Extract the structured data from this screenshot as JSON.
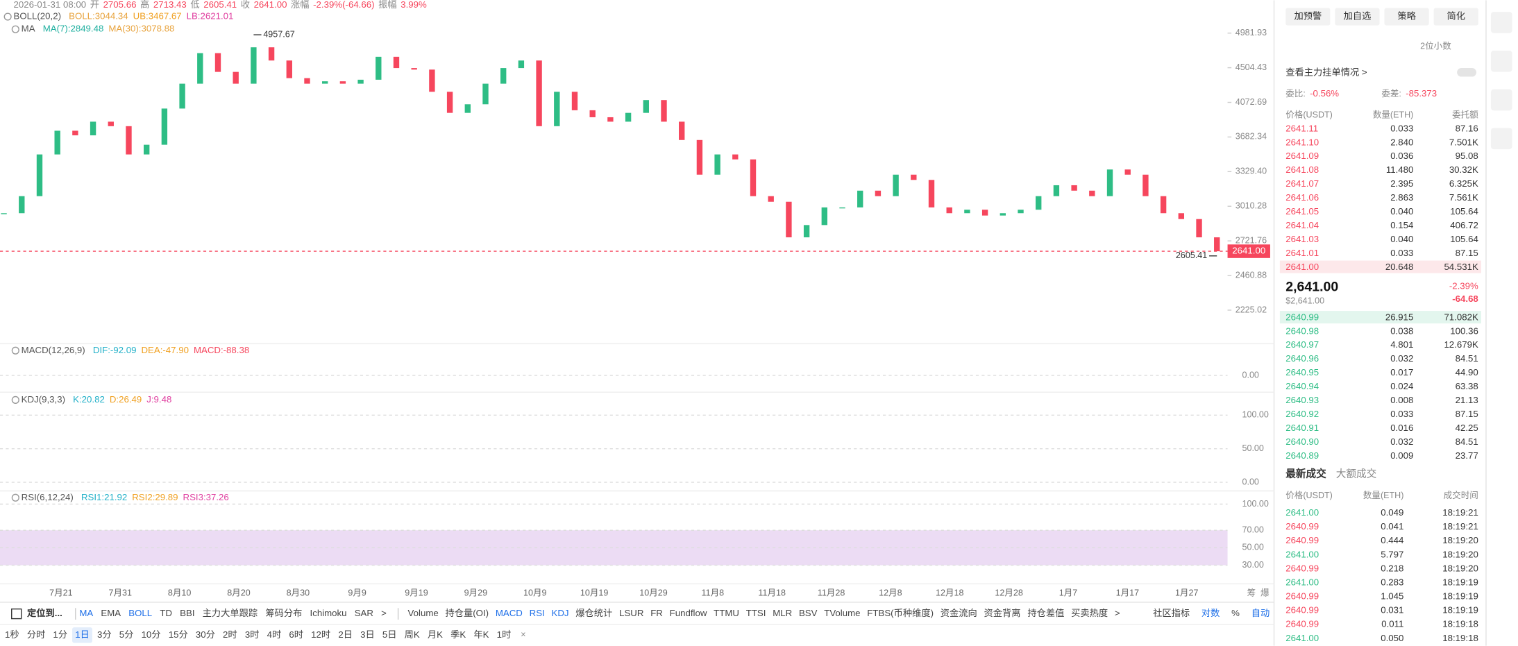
{
  "header": {
    "items": [
      {
        "text": "2026-01-31 08:00",
        "color": "#888888"
      },
      {
        "text": "开",
        "color": "#888888"
      },
      {
        "text": "2705.66",
        "color": "#f6465d"
      },
      {
        "text": "高",
        "color": "#888888"
      },
      {
        "text": "2713.43",
        "color": "#f6465d"
      },
      {
        "text": "低",
        "color": "#888888"
      },
      {
        "text": "2605.41",
        "color": "#f6465d"
      },
      {
        "text": "收",
        "color": "#888888"
      },
      {
        "text": "2641.00",
        "color": "#f6465d"
      },
      {
        "text": "涨幅",
        "color": "#888888"
      },
      {
        "text": "-2.39%(-64.66)",
        "color": "#f6465d"
      },
      {
        "text": "振幅",
        "color": "#888888"
      },
      {
        "text": "3.99%",
        "color": "#f6465d"
      }
    ]
  },
  "indicators": [
    {
      "name": "BOLL(20,2)",
      "values": [
        {
          "text": "BOLL:3044.34",
          "color": "#e8a33d"
        },
        {
          "text": "UB:3467.67",
          "color": "#f0a020"
        },
        {
          "text": "LB:2621.01",
          "color": "#e040a0"
        }
      ]
    },
    {
      "name": "MA",
      "values": [
        {
          "text": "MA(7):2849.48",
          "color": "#20b0a0"
        },
        {
          "text": "MA(30):3078.88",
          "color": "#e8a33d"
        }
      ]
    },
    {
      "name": "MACD(12,26,9)",
      "values": [
        {
          "text": "DIF:-92.09",
          "color": "#20b0c8"
        },
        {
          "text": "DEA:-47.90",
          "color": "#f0a020"
        },
        {
          "text": "MACD:-88.38",
          "color": "#f6465d"
        }
      ]
    },
    {
      "name": "KDJ(9,3,3)",
      "values": [
        {
          "text": "K:20.82",
          "color": "#20b0c8"
        },
        {
          "text": "D:26.49",
          "color": "#f0a020"
        },
        {
          "text": "J:9.48",
          "color": "#e040a0"
        }
      ]
    },
    {
      "name": "RSI(6,12,24)",
      "values": [
        {
          "text": "RSI1:21.92",
          "color": "#20b0c8"
        },
        {
          "text": "RSI2:29.89",
          "color": "#f0a020"
        },
        {
          "text": "RSI3:37.26",
          "color": "#e040a0"
        }
      ]
    }
  ],
  "price_chart": {
    "type": "candlestick",
    "log_scale": true,
    "grid": false,
    "ylim": [
      2046,
      5405
    ],
    "up_color": "#2ebd85",
    "down_color": "#f6465d",
    "yticks": [
      4981.93,
      4504.43,
      4072.69,
      3682.34,
      {
        "value": 3329.4,
        "label": "3329.40"
      },
      3010.28,
      2721.76,
      2460.88,
      2225.02
    ],
    "closes": [
      2950,
      3100,
      3500,
      3750,
      3700,
      3850,
      3800,
      3500,
      3600,
      4000,
      4300,
      4700,
      4450,
      4300,
      4780,
      4600,
      4370,
      4300,
      4330,
      4300,
      4350,
      4650,
      4500,
      4480,
      4200,
      3950,
      4050,
      4300,
      4500,
      4600,
      3800,
      4200,
      3980,
      3900,
      3850,
      3950,
      4100,
      3850,
      3650,
      3300,
      3500,
      3450,
      3100,
      3050,
      2750,
      2850,
      3000,
      3000,
      3150,
      3100,
      3300,
      3250,
      3000,
      2950,
      2980,
      2930,
      2950,
      2980,
      3100,
      3200,
      3150,
      3100,
      3350,
      3300,
      3100,
      2950,
      2900,
      2750,
      2641
    ],
    "high_label": 4957.67,
    "low_label": 2605.41,
    "last_price": {
      "value": 2641,
      "label": "2641.00"
    },
    "xticks": [
      "7月21",
      "7月31",
      "8月10",
      "8月20",
      "8月30",
      "9月9",
      "9月19",
      "9月29",
      "10月9",
      "10月19",
      "10月29",
      "11月8",
      "11月18",
      "11月28",
      "12月8",
      "12月18",
      "12月28",
      "1月7",
      "1月17",
      "1月27"
    ],
    "corner_labels": [
      "筹",
      "爆"
    ]
  },
  "sub_panels": [
    {
      "ylim": [
        -200,
        400
      ],
      "yticks": [
        {
          "value": 0,
          "label": "0.00"
        }
      ]
    },
    {
      "ylim": [
        -10,
        127
      ],
      "yticks": [
        {
          "value": 100,
          "label": "100.00"
        },
        {
          "value": 50,
          "label": "50.00"
        },
        {
          "value": 0,
          "label": "0.00"
        }
      ]
    },
    {
      "ylim": [
        12,
        114
      ],
      "yticks": [
        {
          "value": 100,
          "label": "100.00"
        },
        {
          "value": 70,
          "label": "70.00"
        },
        {
          "value": 50,
          "label": "50.00"
        },
        {
          "value": 30,
          "label": "30.00"
        }
      ]
    }
  ],
  "toolbar": {
    "locate": "定位到...",
    "active_color": "#1e6fe8",
    "main": [
      {
        "text": "MA",
        "active": true
      },
      {
        "text": "EMA"
      },
      {
        "text": "BOLL",
        "active": true
      },
      {
        "text": "TD"
      },
      {
        "text": "BBI"
      },
      {
        "text": "主力大单跟踪"
      },
      {
        "text": "筹码分布"
      },
      {
        "text": "Ichimoku"
      },
      {
        "text": "SAR"
      },
      {
        "text": ">"
      }
    ],
    "sub": [
      {
        "text": "Volume"
      },
      {
        "text": "持仓量(OI)"
      },
      {
        "text": "MACD",
        "active": true
      },
      {
        "text": "RSI",
        "active": true
      },
      {
        "text": "KDJ",
        "active": true
      },
      {
        "text": "爆仓统计"
      },
      {
        "text": "LSUR"
      },
      {
        "text": "FR"
      },
      {
        "text": "Fundflow"
      },
      {
        "text": "TTMU"
      },
      {
        "text": "TTSI"
      },
      {
        "text": "MLR"
      },
      {
        "text": "BSV"
      },
      {
        "text": "TVolume"
      },
      {
        "text": "FTBS(币种维度)"
      },
      {
        "text": "资金流向"
      },
      {
        "text": "资金背离"
      },
      {
        "text": "持仓差值"
      },
      {
        "text": "买卖热度"
      },
      {
        "text": ">"
      }
    ],
    "right": [
      {
        "text": "社区指标"
      },
      {
        "text": "对数",
        "active": true
      },
      {
        "text": "%"
      },
      {
        "text": "自动",
        "active": true
      }
    ],
    "intervals": [
      {
        "text": "1秒"
      },
      {
        "text": "分时"
      },
      {
        "text": "1分"
      },
      {
        "text": "1日",
        "active": true
      },
      {
        "text": "3分"
      },
      {
        "text": "5分"
      },
      {
        "text": "10分"
      },
      {
        "text": "15分"
      },
      {
        "text": "30分"
      },
      {
        "text": "2时"
      },
      {
        "text": "3时"
      },
      {
        "text": "4时"
      },
      {
        "text": "6时"
      },
      {
        "text": "12时"
      },
      {
        "text": "2日"
      },
      {
        "text": "3日"
      },
      {
        "text": "5日"
      },
      {
        "text": "周K"
      },
      {
        "text": "月K"
      },
      {
        "text": "季K"
      },
      {
        "text": "年K"
      },
      {
        "text": "1时"
      }
    ]
  },
  "panel": {
    "buttons": [
      "加预警",
      "加自选",
      "策略",
      "简化"
    ],
    "precision": "2位小数",
    "main_orders": "查看主力挂单情况 >",
    "ratio_label": "委比:",
    "ratio": "-0.56%",
    "diff_label": "委差:",
    "diff": "-85.373",
    "ask_color": "#f6465d",
    "bid_color": "#2ebd85",
    "book_headers": [
      "价格(USDT)",
      "数量(ETH)",
      "委托额"
    ],
    "asks": [
      [
        "2641.11",
        "0.033",
        "87.16"
      ],
      [
        "2641.10",
        "2.840",
        "7.501K"
      ],
      [
        "2641.09",
        "0.036",
        "95.08"
      ],
      [
        "2641.08",
        "11.480",
        "30.32K"
      ],
      [
        "2641.07",
        "2.395",
        "6.325K"
      ],
      [
        "2641.06",
        "2.863",
        "7.561K"
      ],
      [
        "2641.05",
        "0.040",
        "105.64"
      ],
      [
        "2641.04",
        "0.154",
        "406.72"
      ],
      [
        "2641.03",
        "0.040",
        "105.64"
      ],
      [
        "2641.01",
        "0.033",
        "87.15"
      ],
      [
        "2641.00",
        "20.648",
        "54.531K"
      ]
    ],
    "mid_price": "2,641.00",
    "mid_usd": "$2,641.00",
    "mid_change_pct": "-2.39%",
    "mid_change": "-64.68",
    "bids": [
      [
        "2640.99",
        "26.915",
        "71.082K"
      ],
      [
        "2640.98",
        "0.038",
        "100.36"
      ],
      [
        "2640.97",
        "4.801",
        "12.679K"
      ],
      [
        "2640.96",
        "0.032",
        "84.51"
      ],
      [
        "2640.95",
        "0.017",
        "44.90"
      ],
      [
        "2640.94",
        "0.024",
        "63.38"
      ],
      [
        "2640.93",
        "0.008",
        "21.13"
      ],
      [
        "2640.92",
        "0.033",
        "87.15"
      ],
      [
        "2640.91",
        "0.016",
        "42.25"
      ],
      [
        "2640.90",
        "0.032",
        "84.51"
      ],
      [
        "2640.89",
        "0.009",
        "23.77"
      ]
    ],
    "trade_tabs": [
      "最新成交",
      "大额成交"
    ],
    "trade_headers": [
      "价格(USDT)",
      "数量(ETH)",
      "成交时间"
    ],
    "trades": [
      {
        "price": "2641.00",
        "qty": "0.049",
        "time": "18:19:21",
        "color": "#2ebd85"
      },
      {
        "price": "2640.99",
        "qty": "0.041",
        "time": "18:19:21",
        "color": "#f6465d"
      },
      {
        "price": "2640.99",
        "qty": "0.444",
        "time": "18:19:20",
        "color": "#f6465d"
      },
      {
        "price": "2641.00",
        "qty": "5.797",
        "time": "18:19:20",
        "color": "#2ebd85"
      },
      {
        "price": "2640.99",
        "qty": "0.218",
        "time": "18:19:20",
        "color": "#f6465d"
      },
      {
        "price": "2641.00",
        "qty": "0.283",
        "time": "18:19:19",
        "color": "#2ebd85"
      },
      {
        "price": "2640.99",
        "qty": "1.045",
        "time": "18:19:19",
        "color": "#f6465d"
      },
      {
        "price": "2640.99",
        "qty": "0.031",
        "time": "18:19:19",
        "color": "#f6465d"
      },
      {
        "price": "2640.99",
        "qty": "0.011",
        "time": "18:19:18",
        "color": "#f6465d"
      },
      {
        "price": "2641.00",
        "qty": "0.050",
        "time": "18:19:18",
        "color": "#2ebd85"
      }
    ]
  }
}
